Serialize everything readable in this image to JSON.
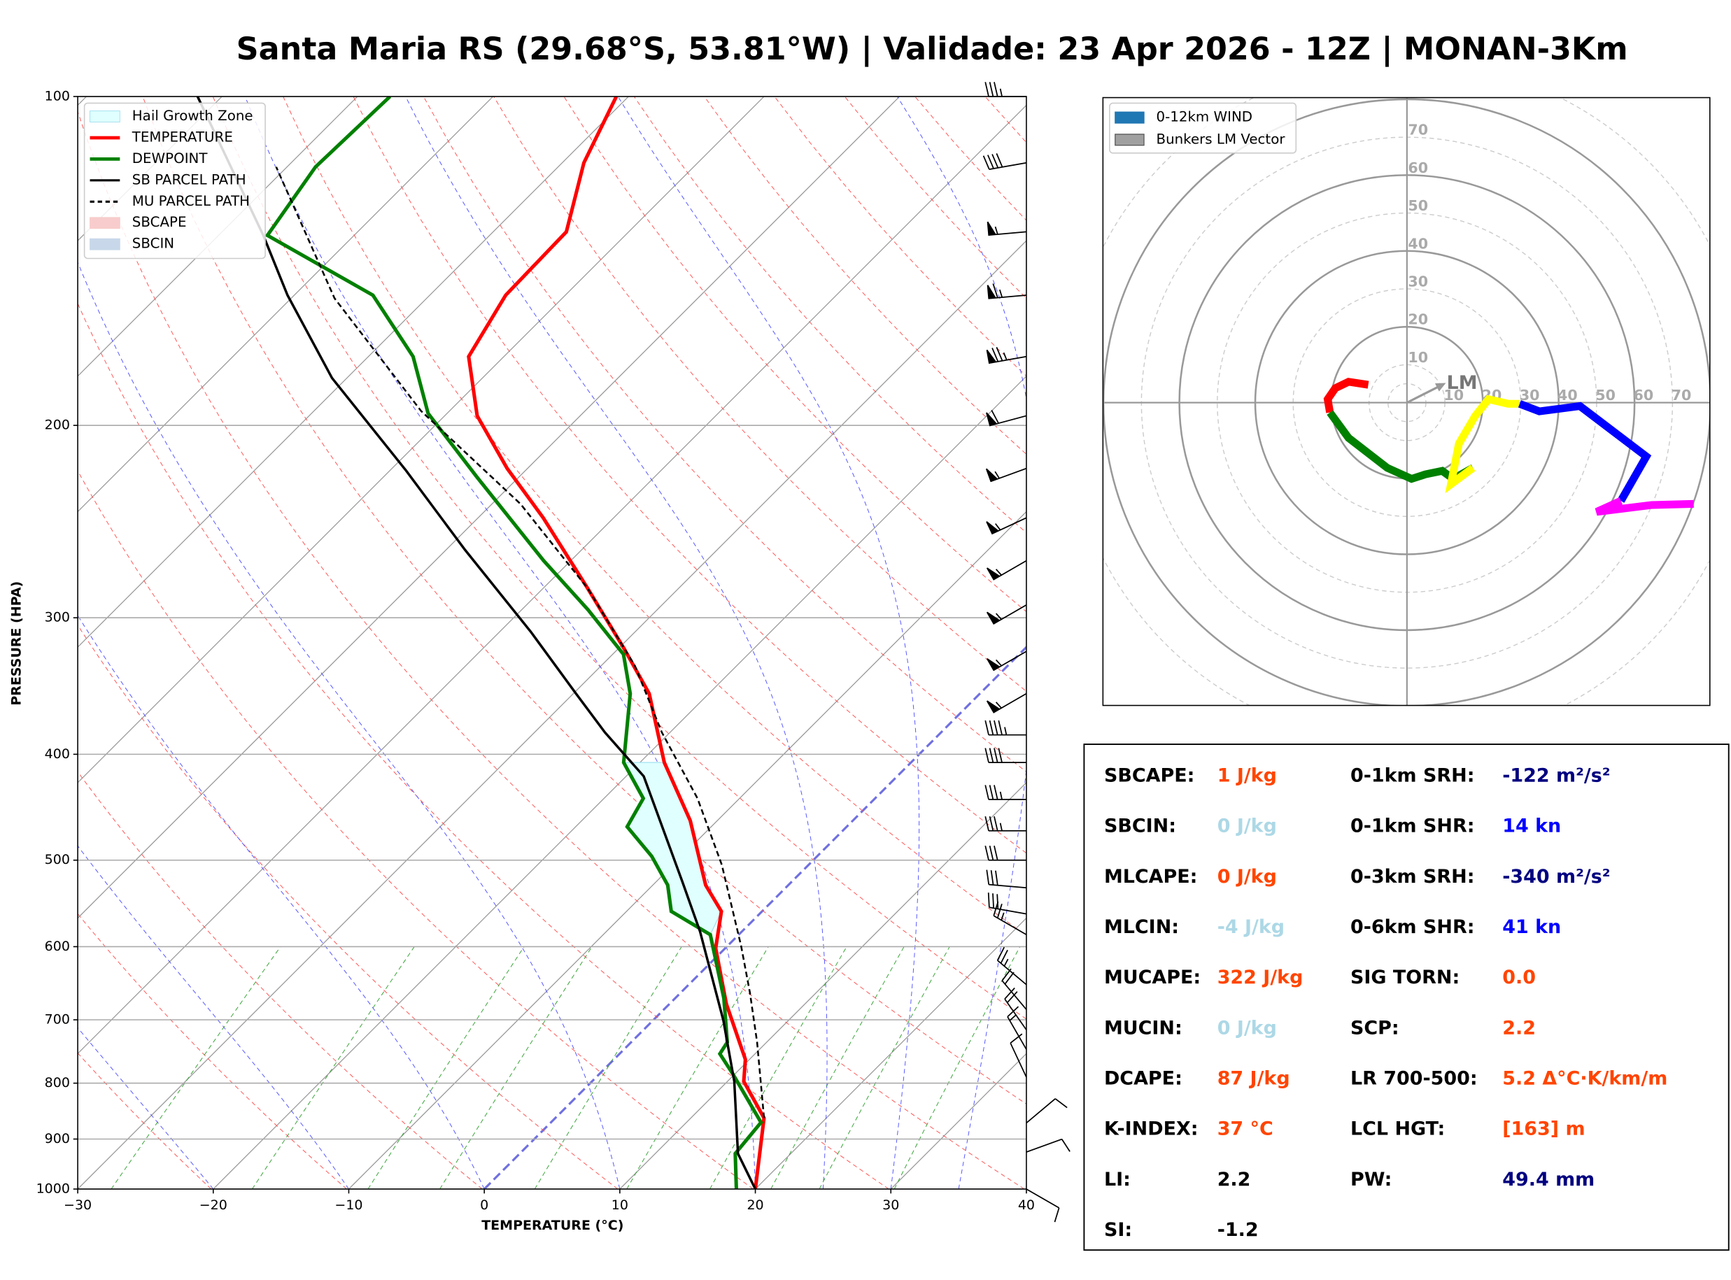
{
  "chart_data": [
    {
      "type": "skewt",
      "title": "Santa Maria RS (29.68°S, 53.81°W) | Validade: 23 Apr 2026 - 12Z | MONAN-3Km",
      "xlabel": "TEMPERATURE (°C)",
      "ylabel": "PRESSURE (HPA)",
      "xlim": [
        -30,
        40
      ],
      "xticks": [
        {
          "value": -30,
          "label": "−30"
        },
        {
          "value": -20,
          "label": "−20"
        },
        {
          "value": -10,
          "label": "−10"
        },
        0,
        10,
        20,
        30,
        40
      ],
      "ylim": [
        1000,
        100
      ],
      "log_scale": true,
      "grid": true,
      "yticks": [
        1000,
        900,
        800,
        700,
        600,
        500,
        400,
        300,
        200,
        100
      ],
      "series": [
        {
          "name": "TEMPERATURE",
          "color": "#ff0000",
          "style": "solid",
          "pressure": [
            1000,
            861,
            797,
            761,
            677,
            602,
            557,
            527,
            460,
            407,
            352,
            320,
            282,
            243,
            219,
            196,
            173,
            152,
            133,
            115,
            100
          ],
          "values": [
            20.0,
            15.4,
            11.2,
            9.7,
            4.2,
            -0.7,
            -3.0,
            -6.1,
            -12.0,
            -18.2,
            -24.4,
            -29.6,
            -36.7,
            -45.2,
            -51.5,
            -57.6,
            -62.6,
            -64.4,
            -64.6,
            -68.4,
            -70.9
          ]
        },
        {
          "name": "DEWPOINT",
          "color": "#008000",
          "style": "solid",
          "pressure": [
            1000,
            928,
            869,
            784,
            752,
            734,
            669,
            585,
            557,
            527,
            496,
            466,
            439,
            407,
            352,
            324,
            295,
            266,
            223,
            195,
            173,
            152,
            134,
            116,
            100
          ],
          "values": [
            18.6,
            15.9,
            15.5,
            9.8,
            7.4,
            7.1,
            3.6,
            -2.1,
            -6.7,
            -8.9,
            -12.2,
            -16.2,
            -17.1,
            -21.2,
            -25.8,
            -29.2,
            -35.1,
            -42.0,
            -53.1,
            -61.4,
            -66.7,
            -74.2,
            -86.4,
            -87.9,
            -87.6
          ]
        },
        {
          "name": "SB PARCEL PATH",
          "color": "#000000",
          "style": "solid",
          "pressure": [
            1000,
            928,
            797,
            701,
            581,
            524,
            419,
            382,
            352,
            309,
            260,
            220,
            181,
            152,
            134,
            100
          ],
          "values": [
            20.0,
            16.1,
            10.5,
            5.2,
            -3.1,
            -8.0,
            -18.7,
            -24.8,
            -29.8,
            -37.7,
            -48.6,
            -58.8,
            -71.1,
            -80.5,
            -86.7,
            -101.8
          ]
        },
        {
          "name": "MU PARCEL PATH",
          "color": "#000000",
          "style": "dashed",
          "pressure": [
            861,
            734,
            661,
            599,
            505,
            439,
            382,
            332,
            282,
            236,
            194,
            153,
            116
          ],
          "values": [
            15.4,
            9.3,
            5.1,
            1.0,
            -6.4,
            -13.1,
            -20.6,
            -27.5,
            -36.7,
            -47.9,
            -62.1,
            -76.8,
            -90.8
          ]
        }
      ],
      "shading": [
        {
          "name": "Hail Growth Zone",
          "color": "#e0ffff",
          "edge": "#a0e0f0",
          "pressure_range": [
            590,
            405
          ]
        },
        {
          "name": "SBCAPE",
          "color": "#f8cccc"
        },
        {
          "name": "SBCIN",
          "color": "#c8d8ea"
        }
      ],
      "winds": {
        "pressure": [
          100,
          115,
          133,
          152,
          173,
          196,
          219,
          243,
          266,
          292,
          322,
          352,
          384,
          407,
          440,
          470,
          500,
          530,
          560,
          585,
          650,
          685,
          715,
          745,
          790,
          870,
          925,
          1000
        ],
        "direction": [
          270,
          260,
          265,
          265,
          260,
          255,
          250,
          245,
          240,
          240,
          240,
          240,
          270,
          270,
          270,
          270,
          270,
          275,
          280,
          300,
          310,
          320,
          325,
          330,
          335,
          50,
          70,
          120
        ],
        "speed": [
          35,
          40,
          55,
          65,
          75,
          60,
          55,
          55,
          55,
          55,
          55,
          55,
          45,
          40,
          35,
          35,
          30,
          30,
          30,
          25,
          25,
          20,
          20,
          15,
          10,
          10,
          10,
          10
        ]
      }
    },
    {
      "type": "hodograph",
      "rlim": [
        0,
        80
      ],
      "rticks": [
        10,
        20,
        30,
        40,
        50,
        60,
        70
      ],
      "legend": [
        {
          "name": "0-12km WIND",
          "color": "#1f77b4"
        },
        {
          "name": "Bunkers LM Vector",
          "color": "#a0a0a0"
        }
      ],
      "series": [
        {
          "color": "#ff0000",
          "u": [
            -10.2,
            -15.4,
            -18.9,
            -20.9,
            -20.3
          ],
          "v": [
            4.7,
            5.5,
            3.8,
            0.9,
            -2.6
          ]
        },
        {
          "color": "#008000",
          "u": [
            -20.3,
            -15.4,
            -5.2,
            1.2,
            4.9,
            9.3,
            12.2,
            17.4
          ],
          "v": [
            -2.6,
            -9.3,
            -17.2,
            -20.1,
            -18.9,
            -18.0,
            -20.1,
            -17.2
          ]
        },
        {
          "color": "#ffff00",
          "u": [
            17.4,
            11.6,
            13.7,
            18.0,
            21.5,
            26.7,
            29.7
          ],
          "v": [
            -17.2,
            -21.5,
            -10.8,
            -3.5,
            0.9,
            -0.3,
            -0.3
          ]
        },
        {
          "color": "#0000ff",
          "u": [
            29.7,
            34.9,
            45.6,
            63.1,
            56.4
          ],
          "v": [
            -0.3,
            -2.3,
            -0.9,
            -14.2,
            -25.9
          ]
        },
        {
          "color": "#ff00ff",
          "u": [
            56.4,
            50.0,
            64.5,
            75.6
          ],
          "v": [
            -25.9,
            -28.8,
            -27.0,
            -26.7
          ]
        }
      ],
      "lm_vector": {
        "label": "LM",
        "u": 8.7,
        "v": 4.4
      }
    }
  ],
  "indices": {
    "left": [
      {
        "label": "SBCAPE:",
        "value": "1 J/kg",
        "color": "#ff4500"
      },
      {
        "label": "SBCIN:",
        "value": "0 J/kg",
        "color": "#add8e6"
      },
      {
        "label": "MLCAPE:",
        "value": "0 J/kg",
        "color": "#ff4500"
      },
      {
        "label": "MLCIN:",
        "value": "-4 J/kg",
        "color": "#add8e6"
      },
      {
        "label": "MUCAPE:",
        "value": "322 J/kg",
        "color": "#ff4500"
      },
      {
        "label": "MUCIN:",
        "value": "0 J/kg",
        "color": "#add8e6"
      },
      {
        "label": "DCAPE:",
        "value": "87 J/kg",
        "color": "#ff4500"
      },
      {
        "label": "K-INDEX:",
        "value": "37 °C",
        "color": "#ff4500"
      },
      {
        "label": "LI:",
        "value": "2.2",
        "color": "#000000"
      },
      {
        "label": "SI:",
        "value": "-1.2",
        "color": "#000000"
      }
    ],
    "right": [
      {
        "label": "0-1km SRH:",
        "value": "-122 m²/s²",
        "color": "#000080"
      },
      {
        "label": "0-1km SHR:",
        "value": "14 kn",
        "color": "#0000ff"
      },
      {
        "label": "0-3km SRH:",
        "value": "-340 m²/s²",
        "color": "#000080"
      },
      {
        "label": "0-6km SHR:",
        "value": "41 kn",
        "color": "#0000ff"
      },
      {
        "label": "SIG TORN:",
        "value": "0.0",
        "color": "#ff4500"
      },
      {
        "label": "SCP:",
        "value": "2.2",
        "color": "#ff4500"
      },
      {
        "label": "LR 700-500:",
        "value": "5.2 Δ°C·K/km/m",
        "color": "#ff4500"
      },
      {
        "label": "LCL HGT:",
        "value": "[163] m",
        "color": "#ff4500"
      },
      {
        "label": "PW:",
        "value": "49.4 mm",
        "color": "#000080"
      }
    ]
  }
}
